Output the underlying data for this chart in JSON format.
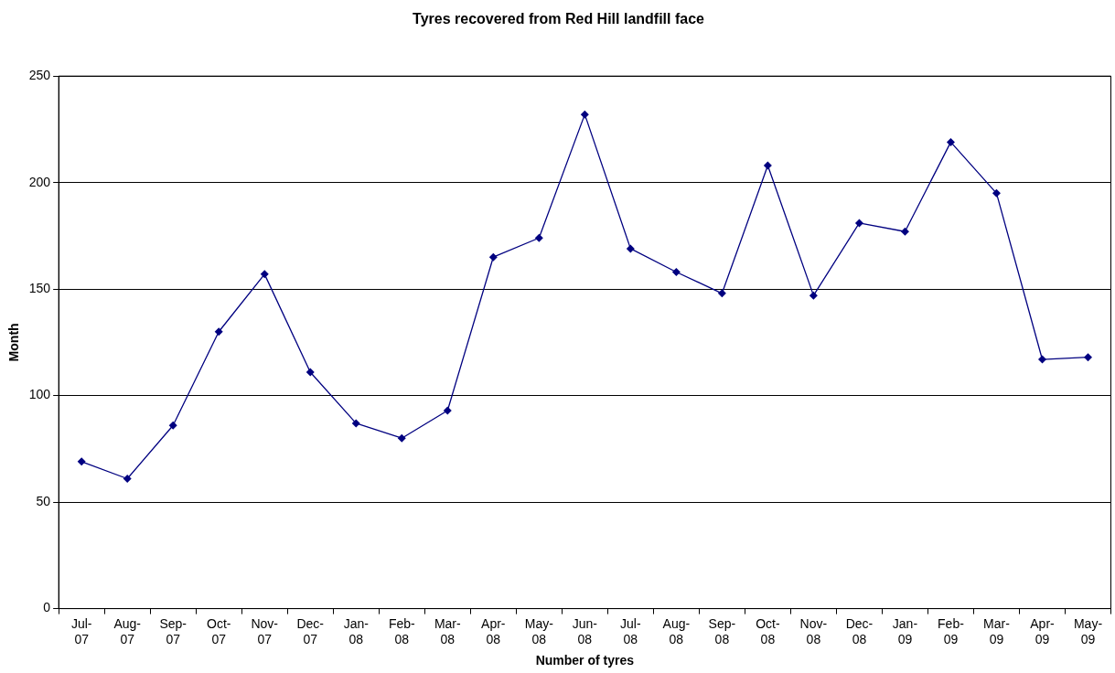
{
  "chart_data": {
    "type": "line",
    "title": "Tyres recovered from Red Hill landfill face",
    "xlabel": "Number of tyres",
    "ylabel": "Month",
    "categories": [
      "Jul-07",
      "Aug-07",
      "Sep-07",
      "Oct-07",
      "Nov-07",
      "Dec-07",
      "Jan-08",
      "Feb-08",
      "Mar-08",
      "Apr-08",
      "May-08",
      "Jun-08",
      "Jul-08",
      "Aug-08",
      "Sep-08",
      "Oct-08",
      "Nov-08",
      "Dec-08",
      "Jan-09",
      "Feb-09",
      "Mar-09",
      "Apr-09",
      "May-09"
    ],
    "series": [
      {
        "color": "#000080",
        "values": [
          69,
          61,
          86,
          130,
          157,
          111,
          87,
          80,
          93,
          165,
          174,
          232,
          169,
          158,
          148,
          208,
          147,
          181,
          177,
          219,
          195,
          117,
          118
        ]
      }
    ],
    "ylim": [
      0,
      250
    ],
    "yticks": [
      0,
      50,
      100,
      150,
      200,
      250
    ],
    "grid": "y",
    "legend": false,
    "marker": "diamond",
    "line_style": "solid"
  }
}
